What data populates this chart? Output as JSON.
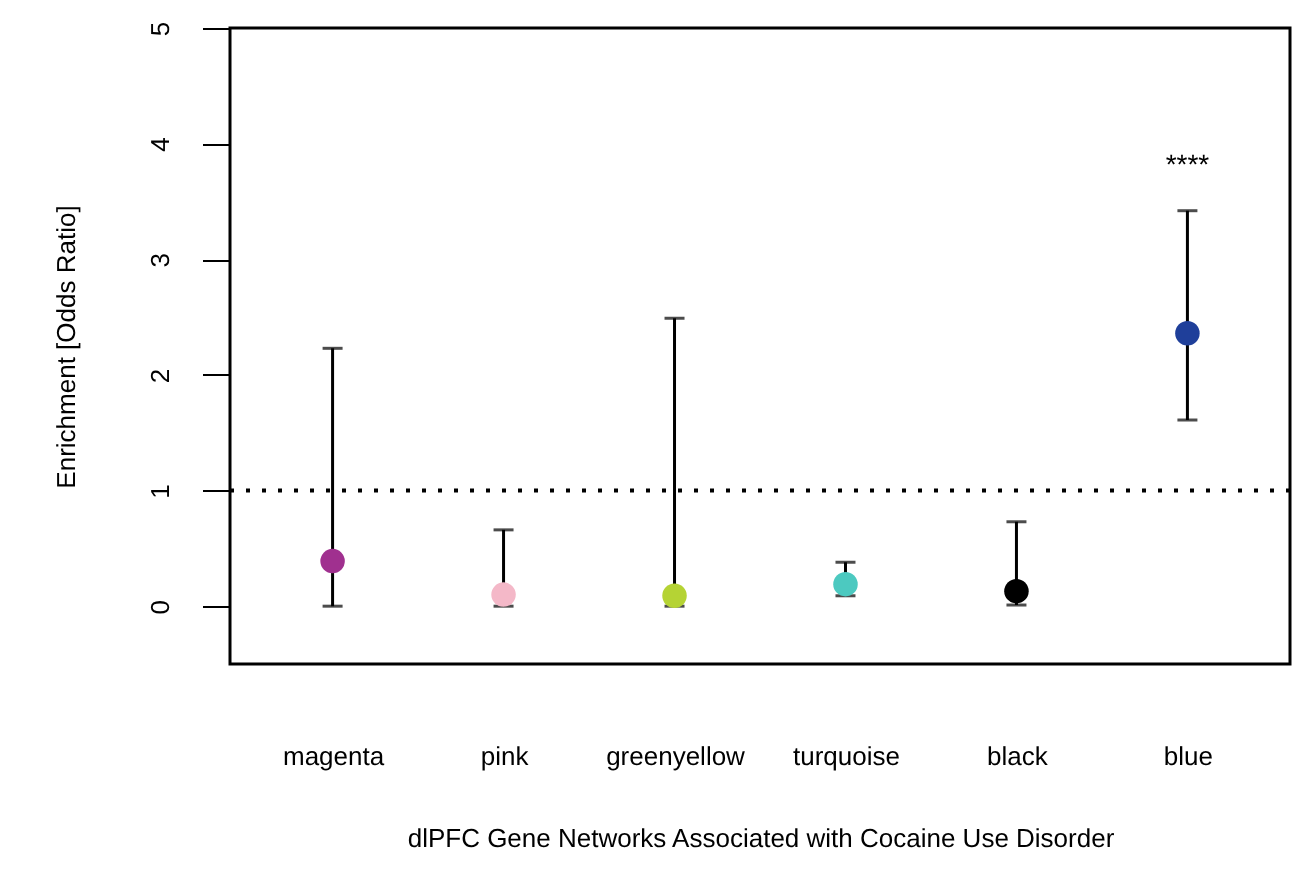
{
  "chart_data": {
    "type": "scatter",
    "xlabel": "dlPFC Gene Networks Associated with Cocaine Use Disorder",
    "ylabel": "Enrichment [Odds Ratio]",
    "categories": [
      "magenta",
      "pink",
      "greenyellow",
      "turquoise",
      "black",
      "blue"
    ],
    "values": [
      0.39,
      0.1,
      0.09,
      0.19,
      0.13,
      2.36
    ],
    "colors": [
      "#a0308f",
      "#f4b8c8",
      "#b5d334",
      "#4cc9c0",
      "#000000",
      "#1f3f9a"
    ],
    "errors": [
      [
        0,
        2.23
      ],
      [
        0,
        0.66
      ],
      [
        0,
        2.49
      ],
      [
        0.09,
        0.38
      ],
      [
        0.01,
        0.73
      ],
      [
        1.61,
        3.42
      ]
    ],
    "ylim": [
      -0.5,
      5
    ],
    "yticks": [
      0,
      1,
      2,
      3,
      4,
      5
    ],
    "grid": false,
    "marker": "circle",
    "ref_lines": [
      {
        "axis": "y",
        "value": 1,
        "line_style": "dotted"
      }
    ],
    "annotations": [
      "****"
    ]
  }
}
